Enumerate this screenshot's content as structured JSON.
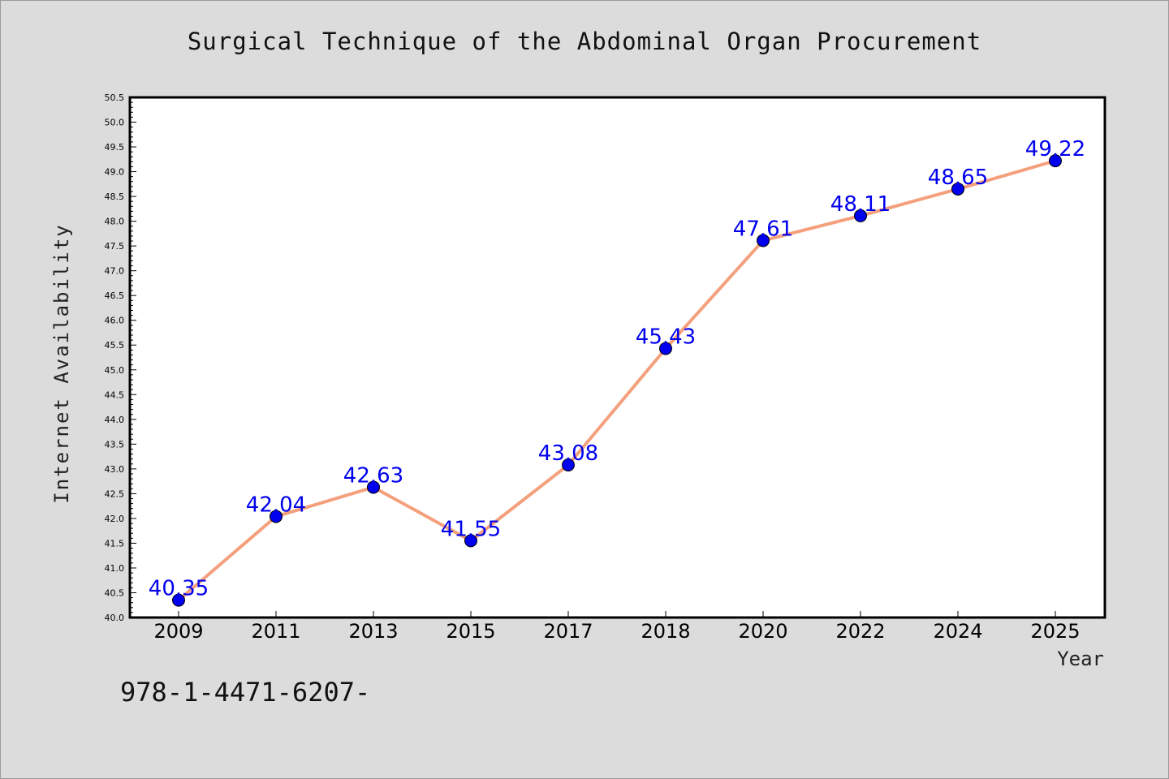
{
  "chart_data": {
    "type": "line",
    "title": "Surgical Technique of the Abdominal Organ Procurement",
    "xlabel": "Year",
    "ylabel": "Internet Availability",
    "categories": [
      "2009",
      "2011",
      "2013",
      "2015",
      "2017",
      "2018",
      "2020",
      "2022",
      "2024",
      "2025"
    ],
    "series": [
      {
        "values": [
          40.35,
          42.04,
          42.63,
          41.55,
          43.08,
          45.43,
          47.61,
          48.11,
          48.65,
          49.22
        ]
      }
    ],
    "data_labels": [
      "40.35",
      "42.04",
      "42.63",
      "41.55",
      "43.08",
      "45.43",
      "47.61",
      "48.11",
      "48.65",
      "49.22"
    ],
    "ylim": [
      40.0,
      50.5
    ],
    "yticks": [
      "40.0",
      "40.5",
      "41.0",
      "41.5",
      "42.0",
      "42.5",
      "43.0",
      "43.5",
      "44.0",
      "44.5",
      "45.0",
      "45.5",
      "46.0",
      "46.5",
      "47.0",
      "47.5",
      "48.0",
      "48.5",
      "49.0",
      "49.5",
      "50.0",
      "50.5"
    ],
    "grid": false,
    "line_color": "#f4a07c",
    "marker_color": "#0000ee"
  },
  "footer_text": "978-1-4471-6207-"
}
